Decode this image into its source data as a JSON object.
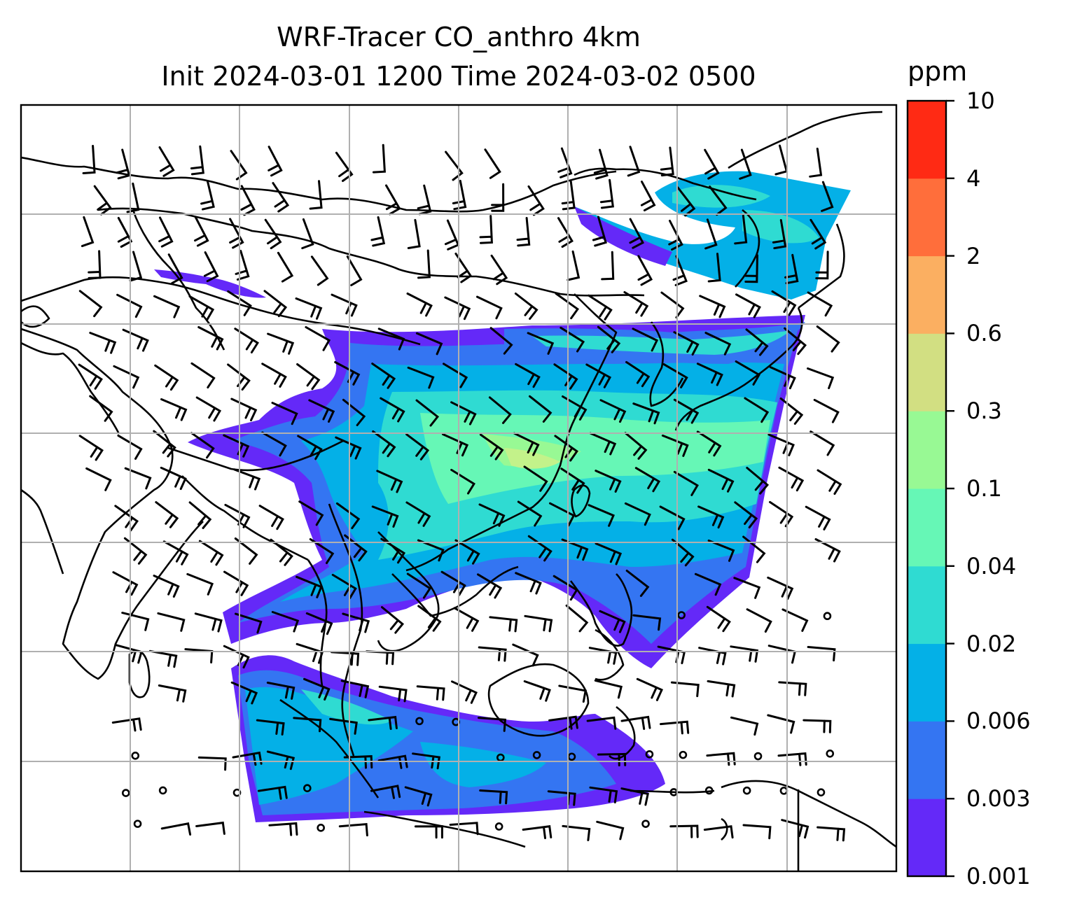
{
  "title": {
    "line1": "WRF-Tracer CO_anthro 4km",
    "line2": "Init 2024-03-01 1200 Time 2024-03-02 0500"
  },
  "colorbar": {
    "unit": "ppm",
    "ticks": [
      "0.001",
      "0.003",
      "0.006",
      "0.02",
      "0.04",
      "0.1",
      "0.3",
      "0.6",
      "2",
      "4",
      "10"
    ],
    "colors": [
      "#6429f8",
      "#3475f2",
      "#04b0e7",
      "#2fdbd2",
      "#66f7b6",
      "#98f994",
      "#d2df82",
      "#fbaf61",
      "#ff6e3b",
      "#ff2a14"
    ]
  },
  "map": {
    "field": "CO_anthro",
    "resolution": "4km",
    "gridlines": true,
    "overlays": [
      "coastlines",
      "borders",
      "wind-barbs"
    ]
  }
}
